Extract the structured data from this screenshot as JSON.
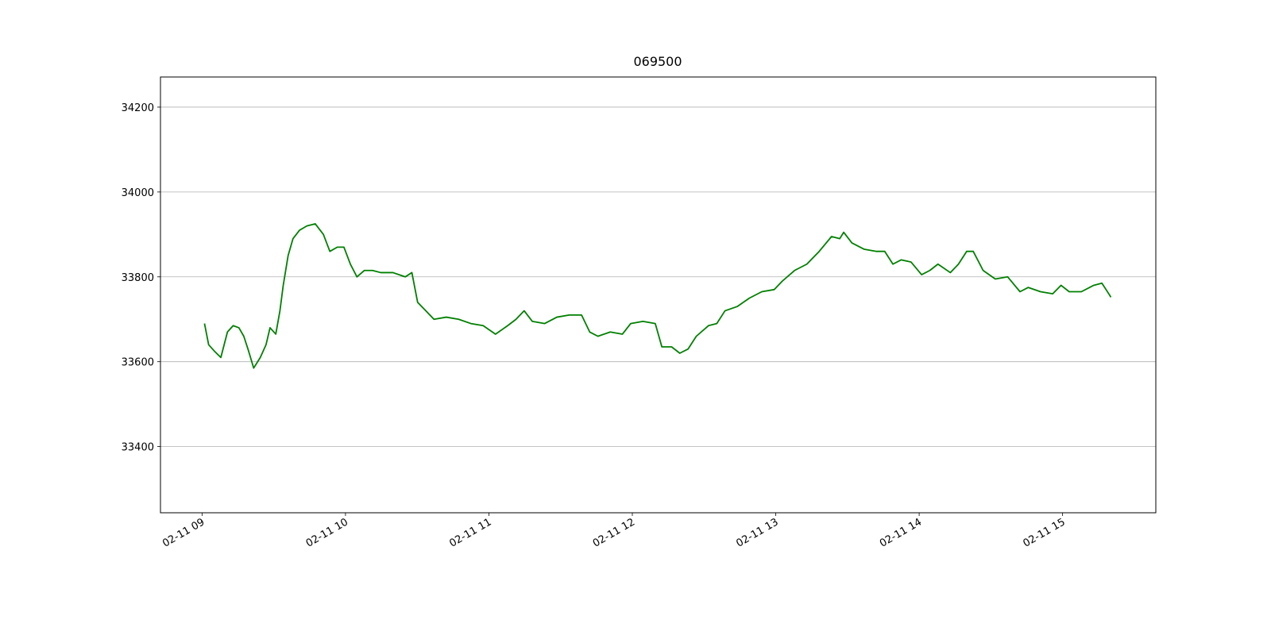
{
  "chart_data": {
    "type": "line",
    "title": "069500",
    "x": [
      9.017,
      9.046,
      9.086,
      9.131,
      9.177,
      9.217,
      9.257,
      9.291,
      9.32,
      9.36,
      9.406,
      9.446,
      9.474,
      9.514,
      9.543,
      9.566,
      9.6,
      9.634,
      9.68,
      9.731,
      9.789,
      9.846,
      9.891,
      9.943,
      9.989,
      10.034,
      10.08,
      10.131,
      10.189,
      10.246,
      10.331,
      10.417,
      10.463,
      10.503,
      10.56,
      10.617,
      10.703,
      10.789,
      10.874,
      10.96,
      11.046,
      11.131,
      11.189,
      11.246,
      11.303,
      11.389,
      11.474,
      11.56,
      11.646,
      11.703,
      11.76,
      11.846,
      11.931,
      11.989,
      12.074,
      12.16,
      12.206,
      12.274,
      12.331,
      12.389,
      12.446,
      12.531,
      12.589,
      12.646,
      12.731,
      12.817,
      12.903,
      12.989,
      13.046,
      13.131,
      13.217,
      13.303,
      13.389,
      13.446,
      13.474,
      13.531,
      13.617,
      13.703,
      13.76,
      13.817,
      13.874,
      13.943,
      14.017,
      14.074,
      14.131,
      14.217,
      14.274,
      14.331,
      14.377,
      14.446,
      14.531,
      14.617,
      14.703,
      14.76,
      14.846,
      14.931,
      14.989,
      15.046,
      15.131,
      15.217,
      15.274,
      15.303,
      15.337
    ],
    "values": [
      33690,
      33640,
      33625,
      33610,
      33670,
      33685,
      33680,
      33660,
      33630,
      33585,
      33610,
      33640,
      33680,
      33665,
      33720,
      33780,
      33850,
      33890,
      33910,
      33920,
      33925,
      33900,
      33860,
      33870,
      33870,
      33830,
      33800,
      33815,
      33815,
      33810,
      33810,
      33800,
      33810,
      33740,
      33720,
      33700,
      33705,
      33700,
      33690,
      33685,
      33665,
      33685,
      33700,
      33720,
      33695,
      33690,
      33705,
      33710,
      33710,
      33670,
      33660,
      33670,
      33665,
      33690,
      33695,
      33690,
      33635,
      33635,
      33620,
      33630,
      33660,
      33685,
      33690,
      33720,
      33730,
      33750,
      33765,
      33770,
      33790,
      33815,
      33830,
      33860,
      33895,
      33890,
      33905,
      33880,
      33865,
      33860,
      33860,
      33830,
      33840,
      33835,
      33805,
      33815,
      33830,
      33810,
      33830,
      33860,
      33860,
      33815,
      33795,
      33800,
      33765,
      33775,
      33765,
      33760,
      33780,
      33765,
      33765,
      33780,
      33785,
      33770,
      33752
    ],
    "color": "#008000",
    "xlim": [
      8.71,
      15.65
    ],
    "xticks": [
      {
        "value": 9,
        "label": "02-11 09"
      },
      {
        "value": 10,
        "label": "02-11 10"
      },
      {
        "value": 11,
        "label": "02-11 11"
      },
      {
        "value": 12,
        "label": "02-11 12"
      },
      {
        "value": 13,
        "label": "02-11 13"
      },
      {
        "value": 14,
        "label": "02-11 14"
      },
      {
        "value": 15,
        "label": "02-11 15"
      }
    ],
    "ylim": [
      33244,
      34271
    ],
    "yticks": [
      33400,
      33600,
      33800,
      34000,
      34200
    ],
    "grid": "y"
  }
}
